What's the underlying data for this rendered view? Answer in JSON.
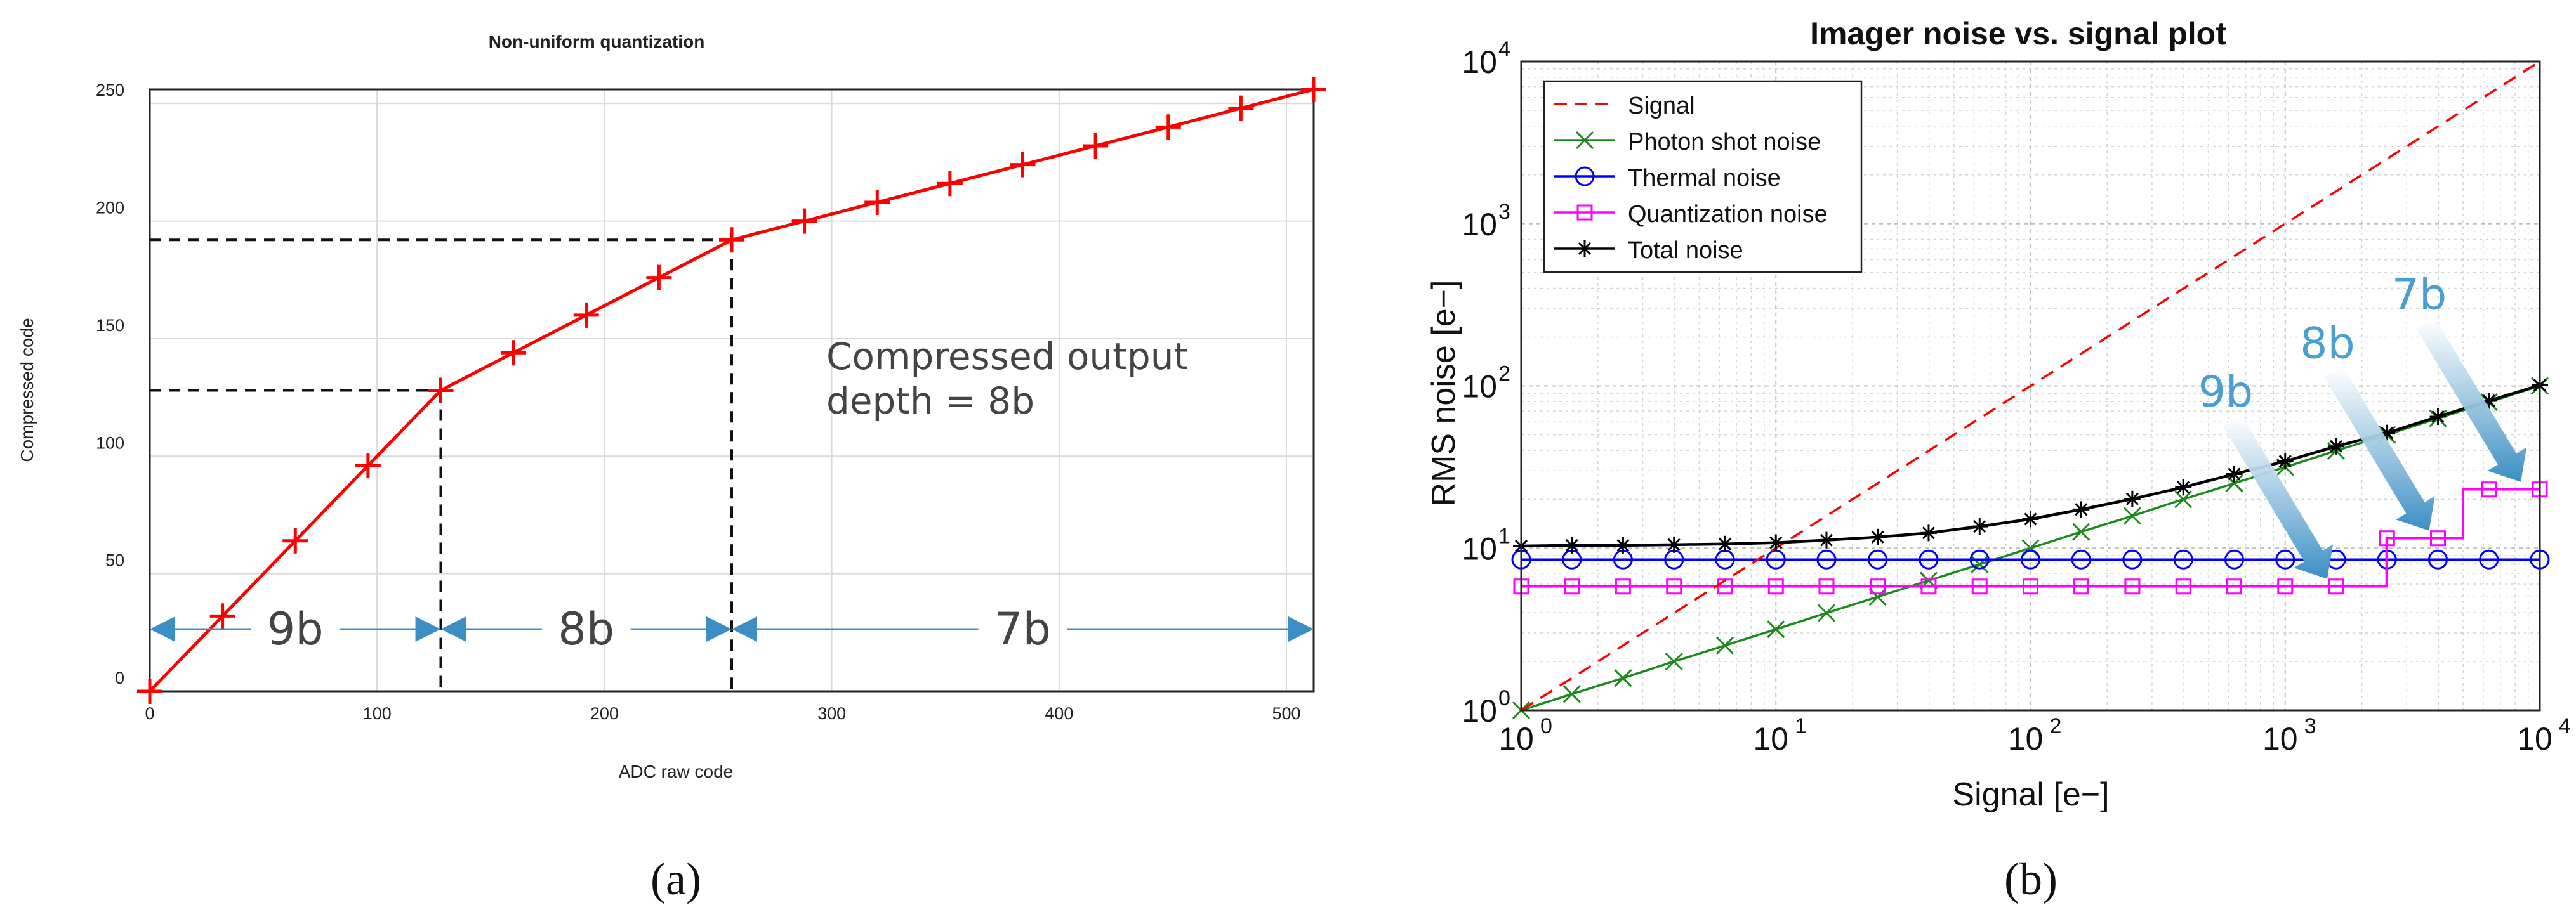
{
  "panels": {
    "a_label": "(a)",
    "b_label": "(b)"
  },
  "chart_data": [
    {
      "id": "a",
      "type": "line",
      "title": "Non-uniform quantization",
      "xlabel": "ADC raw code",
      "ylabel": "Compressed code",
      "xlim": [
        0,
        512
      ],
      "ylim": [
        0,
        256
      ],
      "xticks": [
        0,
        100,
        200,
        300,
        400,
        500
      ],
      "yticks": [
        0,
        50,
        100,
        150,
        200,
        250
      ],
      "grid": true,
      "series": [
        {
          "name": "Compressed code",
          "color": "#ff0000",
          "marker": "plus",
          "x": [
            0,
            32,
            64,
            96,
            128,
            160,
            192,
            224,
            256,
            288,
            320,
            352,
            384,
            416,
            448,
            480,
            512
          ],
          "y": [
            0,
            32,
            64,
            96,
            128,
            144,
            160,
            176,
            192,
            200,
            208,
            216,
            224,
            232,
            240,
            248,
            256
          ]
        }
      ],
      "guides": [
        {
          "x": 128,
          "y": 128
        },
        {
          "x": 256,
          "y": 192
        }
      ],
      "segments": [
        {
          "label": "9b",
          "from": 0,
          "to": 128
        },
        {
          "label": "8b",
          "from": 128,
          "to": 256
        },
        {
          "label": "7b",
          "from": 256,
          "to": 512
        }
      ],
      "annotation": [
        "Compressed output",
        "depth = 8b"
      ],
      "segment_arrow_color": "#3b8fc4"
    },
    {
      "id": "b",
      "type": "line",
      "scale": "log-log",
      "title": "Imager noise vs. signal plot",
      "xlabel": "Signal [e−]",
      "ylabel": "RMS noise [e−]",
      "xlim": [
        1,
        10000
      ],
      "ylim": [
        1,
        10000
      ],
      "tick_exponents": [
        0,
        1,
        2,
        3,
        4
      ],
      "tick_base": "10",
      "grid": true,
      "legend_position": "top-left",
      "series": [
        {
          "name": "Signal",
          "color": "#ff0000",
          "style": "dashed",
          "marker": "none",
          "x": [
            1,
            10000
          ],
          "y": [
            1,
            10000
          ]
        },
        {
          "name": "Photon shot noise",
          "color": "#1a8a1a",
          "style": "solid",
          "marker": "x",
          "x": [
            1,
            1.58,
            2.51,
            3.98,
            6.31,
            10,
            15.8,
            25.1,
            39.8,
            63.1,
            100,
            158,
            251,
            398,
            631,
            1000,
            1585,
            2512,
            3981,
            6310,
            10000
          ],
          "y": [
            1,
            1.26,
            1.58,
            2.0,
            2.51,
            3.16,
            3.98,
            5.01,
            6.31,
            7.94,
            10,
            12.6,
            15.8,
            20.0,
            25.1,
            31.6,
            39.8,
            50.1,
            63.1,
            79.4,
            100
          ]
        },
        {
          "name": "Thermal noise",
          "color": "#0000ff",
          "style": "solid",
          "marker": "circle",
          "x": [
            1,
            1.58,
            2.51,
            3.98,
            6.31,
            10,
            15.8,
            25.1,
            39.8,
            63.1,
            100,
            158,
            251,
            398,
            631,
            1000,
            1585,
            2512,
            3981,
            6310,
            10000
          ],
          "y": [
            8.5,
            8.5,
            8.5,
            8.5,
            8.5,
            8.5,
            8.5,
            8.5,
            8.5,
            8.5,
            8.5,
            8.5,
            8.5,
            8.5,
            8.5,
            8.5,
            8.5,
            8.5,
            8.5,
            8.5,
            8.5
          ]
        },
        {
          "name": "Quantization noise",
          "color": "#ff00ff",
          "style": "solid",
          "marker": "square",
          "step": true,
          "x": [
            1,
            1.58,
            2.51,
            3.98,
            6.31,
            10,
            15.8,
            25.1,
            39.8,
            63.1,
            100,
            158,
            251,
            398,
            631,
            1000,
            1585,
            2512,
            3981,
            6310,
            10000
          ],
          "y": [
            5.8,
            5.8,
            5.8,
            5.8,
            5.8,
            5.8,
            5.8,
            5.8,
            5.8,
            5.8,
            5.8,
            5.8,
            5.8,
            5.8,
            5.8,
            5.8,
            5.8,
            11.5,
            11.5,
            23,
            23
          ],
          "step_edges": [
            [
              2500,
              5.8,
              11.5
            ],
            [
              5000,
              11.5,
              23
            ]
          ]
        },
        {
          "name": "Total noise",
          "color": "#000000",
          "style": "solid",
          "marker": "asterisk",
          "x": [
            1,
            1.58,
            2.51,
            3.98,
            6.31,
            10,
            15.8,
            25.1,
            39.8,
            63.1,
            100,
            158,
            251,
            398,
            631,
            1000,
            1585,
            2512,
            3981,
            6310,
            10000
          ],
          "y": [
            10.3,
            10.4,
            10.4,
            10.5,
            10.6,
            10.8,
            11.2,
            11.7,
            12.4,
            13.6,
            15.1,
            17.3,
            20.1,
            23.7,
            28.6,
            34.3,
            42.4,
            51.3,
            64.6,
            80.9,
            101
          ]
        }
      ],
      "callouts": [
        {
          "label": "9b",
          "color": "#4a9fd0",
          "target": [
            1585,
            5.8
          ]
        },
        {
          "label": "8b",
          "color": "#4a9fd0",
          "target": [
            3981,
            11.5
          ]
        },
        {
          "label": "7b",
          "color": "#4a9fd0",
          "target": [
            10000,
            23
          ]
        }
      ]
    }
  ]
}
